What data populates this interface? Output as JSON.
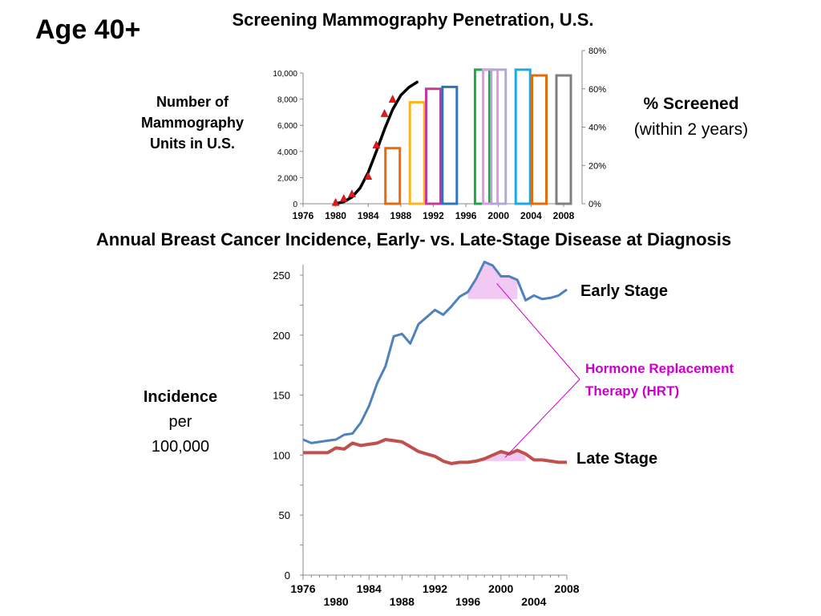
{
  "slide": {
    "age_label": "Age 40+",
    "top_title": "Screening Mammography Penetration, U.S.",
    "units_label_lines": [
      "Number of",
      "Mammography",
      "Units in U.S."
    ],
    "screened_label_bold": "% Screened",
    "screened_label_sub": "(within 2 years)",
    "bottom_title": "Annual Breast Cancer Incidence, Early- vs. Late-Stage Disease at Diagnosis",
    "incidence_label_bold": "Incidence",
    "incidence_label_lines": [
      "per",
      "100,000"
    ]
  },
  "chart_data": [
    {
      "type": "bar",
      "title": "Screening Mammography Penetration, U.S.",
      "x_ticks": [
        "1976",
        "1980",
        "1984",
        "1988",
        "1992",
        "1996",
        "2000",
        "2004",
        "2008"
      ],
      "xlim": [
        1976,
        2008
      ],
      "left_axis": {
        "label": "Number of Mammography Units in U.S.",
        "ylim": [
          0,
          10000
        ],
        "ticks": [
          "0",
          "2,000",
          "4,000",
          "6,000",
          "8,000",
          "10,000"
        ],
        "tick_values": [
          0,
          2000,
          4000,
          6000,
          8000,
          10000
        ]
      },
      "right_axis": {
        "label": "% Screened (within 2 years)",
        "ylim": [
          0,
          80
        ],
        "ticks": [
          "0%",
          "20%",
          "40%",
          "60%",
          "80%"
        ],
        "tick_values": [
          0,
          20,
          40,
          60,
          80
        ]
      },
      "bars": [
        {
          "year": 1987,
          "pct_screened": 29,
          "color": "#E46C0A"
        },
        {
          "year": 1990,
          "pct_screened": 53,
          "color": "#F9B620"
        },
        {
          "year": 1992,
          "pct_screened": 60,
          "color": "#C23B9C"
        },
        {
          "year": 1994,
          "pct_screened": 61,
          "color": "#2E75B6"
        },
        {
          "year": 1998,
          "pct_screened": 70,
          "color": "#1EA84A"
        },
        {
          "year": 1999,
          "pct_screened": 70,
          "color": "#D99BE6"
        },
        {
          "year": 2000,
          "pct_screened": 70,
          "color": "#B4A7D6"
        },
        {
          "year": 2003,
          "pct_screened": 70,
          "color": "#1CA9E6"
        },
        {
          "year": 2005,
          "pct_screened": 67,
          "color": "#E46C0A"
        },
        {
          "year": 2008,
          "pct_screened": 67,
          "color": "#7F7F7F"
        }
      ],
      "units_markers": [
        {
          "year": 1980,
          "units": 100
        },
        {
          "year": 1981,
          "units": 400
        },
        {
          "year": 1982,
          "units": 750
        },
        {
          "year": 1984,
          "units": 2100
        },
        {
          "year": 1985,
          "units": 4500
        },
        {
          "year": 1986,
          "units": 6900
        },
        {
          "year": 1987,
          "units": 8000
        }
      ],
      "units_curve": [
        {
          "year": 1980,
          "units": 0
        },
        {
          "year": 1981,
          "units": 150
        },
        {
          "year": 1982,
          "units": 500
        },
        {
          "year": 1983,
          "units": 1200
        },
        {
          "year": 1984,
          "units": 2400
        },
        {
          "year": 1985,
          "units": 4000
        },
        {
          "year": 1986,
          "units": 5700
        },
        {
          "year": 1987,
          "units": 7200
        },
        {
          "year": 1988,
          "units": 8300
        },
        {
          "year": 1989,
          "units": 8900
        },
        {
          "year": 1990,
          "units": 9300
        }
      ],
      "colors": {
        "curve": "#000000",
        "markers": "#E31A1C"
      }
    },
    {
      "type": "line",
      "title": "Annual Breast Cancer Incidence, Early- vs. Late-Stage Disease at Diagnosis",
      "ylabel": "Incidence per 100,000",
      "xlim": [
        1976,
        2008
      ],
      "ylim": [
        0,
        260
      ],
      "y_ticks": [
        0,
        50,
        100,
        150,
        200,
        250
      ],
      "x_ticks_upper": [
        "1976",
        "1984",
        "1992",
        "2000",
        "2008"
      ],
      "x_ticks_lower": [
        "1980",
        "1988",
        "1996",
        "2004"
      ],
      "x": [
        1976,
        1977,
        1978,
        1979,
        1980,
        1981,
        1982,
        1983,
        1984,
        1985,
        1986,
        1987,
        1988,
        1989,
        1990,
        1991,
        1992,
        1993,
        1994,
        1995,
        1996,
        1997,
        1998,
        1999,
        2000,
        2001,
        2002,
        2003,
        2004,
        2005,
        2006,
        2007,
        2008
      ],
      "series": [
        {
          "name": "Early Stage",
          "color": "#4F81BD",
          "values": [
            113,
            110,
            111,
            112,
            113,
            117,
            118,
            127,
            141,
            160,
            174,
            199,
            201,
            193,
            209,
            215,
            221,
            217,
            224,
            232,
            236,
            247,
            261,
            258,
            249,
            249,
            246,
            229,
            233,
            230,
            231,
            233,
            238
          ]
        },
        {
          "name": "Late Stage",
          "color": "#C0504D",
          "values": [
            102,
            102,
            102,
            102,
            106,
            105,
            110,
            108,
            109,
            110,
            113,
            112,
            111,
            107,
            103,
            101,
            99,
            95,
            93,
            94,
            94,
            95,
            97,
            100,
            103,
            101,
            104,
            101,
            96,
            96,
            95,
            94,
            94
          ]
        }
      ],
      "annotation": {
        "text_lines": [
          "Hormone Replacement",
          "Therapy (HRT)"
        ],
        "color": "#CC00CC",
        "shade_color": "#F2C9F2",
        "early_shade": {
          "from": 1996,
          "to": 2002,
          "baseline": 230
        },
        "late_shade": {
          "from": 1995,
          "to": 2003,
          "baseline": 95
        }
      }
    }
  ]
}
